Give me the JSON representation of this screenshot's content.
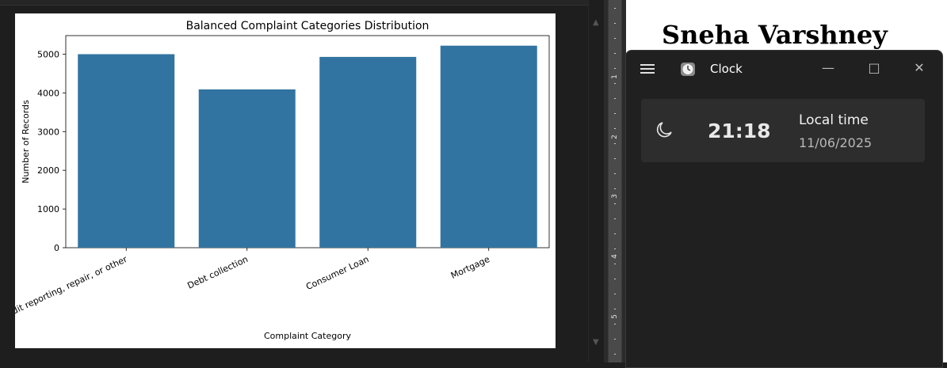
{
  "clock_app": {
    "title": "Clock",
    "time": "21:18",
    "label": "Local time",
    "date": "11/06/2025"
  },
  "document": {
    "title": "Sneha Varshney"
  },
  "ruler": {
    "numbers": [
      "1",
      "2",
      "3",
      "4",
      "5"
    ]
  },
  "icons": {
    "menu": "hamburger-menu-icon",
    "app": "clock-app-icon",
    "minimize": "minimize-icon",
    "maximize": "maximize-icon",
    "close": "close-icon",
    "moon": "moon-icon"
  },
  "colors": {
    "bar": "#3274a1",
    "clock_background": "#202020",
    "card_background": "#2d2d2d"
  },
  "chart_data": {
    "type": "bar",
    "title": "Balanced Complaint Categories Distribution",
    "xlabel": "Complaint Category",
    "ylabel": "Number of Records",
    "categories": [
      "Credit reporting, repair, or other",
      "Debt collection",
      "Consumer Loan",
      "Mortgage"
    ],
    "values": [
      5000,
      4090,
      4930,
      5220
    ],
    "ylim": [
      0,
      5480
    ],
    "yticks": [
      "0",
      "1000",
      "2000",
      "3000",
      "4000",
      "5000"
    ],
    "grid": false
  }
}
